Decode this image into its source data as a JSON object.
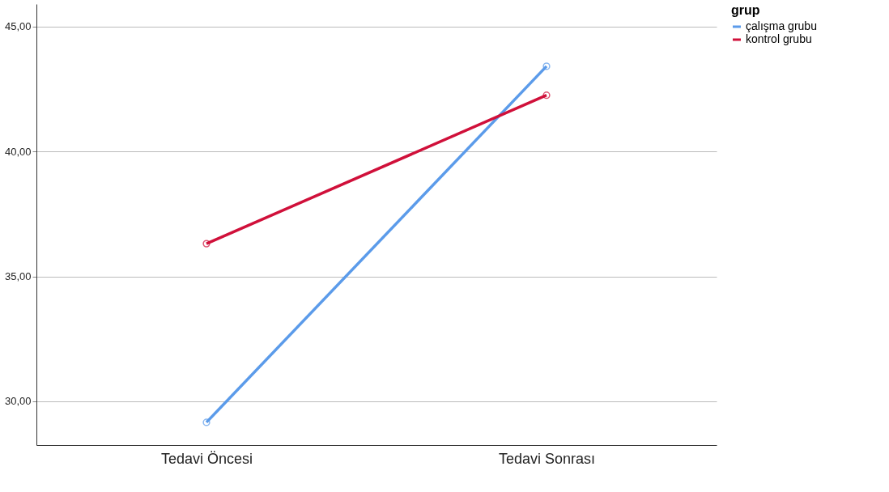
{
  "chart_data": {
    "type": "line",
    "legend_title": "grup",
    "categories": [
      "Tedavi Öncesi",
      "Tedavi Sonrası"
    ],
    "series": [
      {
        "name": "çalışma grubu",
        "color": "#5b9bea",
        "values": [
          29.16,
          43.41
        ]
      },
      {
        "name": "kontrol grubu",
        "color": "#d0103a",
        "values": [
          36.31,
          42.25
        ]
      }
    ],
    "ylim": [
      28.25,
      45.9
    ],
    "yticks": [
      {
        "value": 30,
        "label": "30,00"
      },
      {
        "value": 35,
        "label": "35,00"
      },
      {
        "value": 40,
        "label": "40,00"
      },
      {
        "value": 45,
        "label": "45,00"
      }
    ],
    "grid": "y",
    "legend": "top right",
    "marker": "circle",
    "line_style": "solid"
  }
}
